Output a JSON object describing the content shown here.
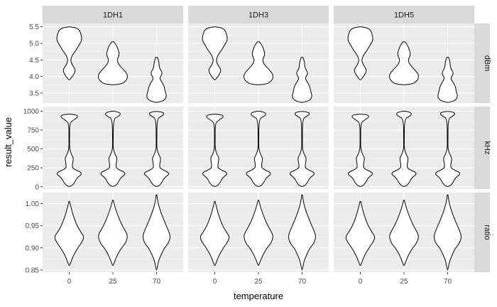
{
  "chart_data": {
    "type": "violin",
    "xlabel": "temperature",
    "ylabel": "result_value",
    "x_categories": [
      "0",
      "25",
      "70"
    ],
    "facet_columns": [
      "1DH1",
      "1DH3",
      "1DH5"
    ],
    "facet_rows": [
      {
        "name": "dBm",
        "ylim": [
          3.2,
          5.6
        ],
        "yticks": [
          3.5,
          4.0,
          4.5,
          5.0,
          5.5
        ],
        "ytick_labels": [
          "3.5",
          "4.0",
          "4.5",
          "5.0",
          "5.5"
        ],
        "violins": [
          [
            [
              5.5,
              0.05
            ],
            [
              5.45,
              0.58
            ],
            [
              5.3,
              0.75
            ],
            [
              5.1,
              0.82
            ],
            [
              4.95,
              0.62
            ],
            [
              4.8,
              0.45
            ],
            [
              4.65,
              0.2
            ],
            [
              4.5,
              0.08
            ],
            [
              4.35,
              0.18
            ],
            [
              4.2,
              0.42
            ],
            [
              4.05,
              0.28
            ],
            [
              3.9,
              0.04
            ]
          ],
          [
            [
              5.05,
              0.05
            ],
            [
              4.95,
              0.22
            ],
            [
              4.8,
              0.35
            ],
            [
              4.65,
              0.42
            ],
            [
              4.5,
              0.25
            ],
            [
              4.35,
              0.38
            ],
            [
              4.2,
              0.7
            ],
            [
              4.05,
              0.95
            ],
            [
              3.9,
              0.9
            ],
            [
              3.78,
              0.6
            ],
            [
              3.75,
              0.05
            ]
          ],
          [
            [
              4.58,
              0.05
            ],
            [
              4.45,
              0.15
            ],
            [
              4.25,
              0.18
            ],
            [
              4.1,
              0.4
            ],
            [
              3.95,
              0.18
            ],
            [
              3.85,
              0.32
            ],
            [
              3.7,
              0.5
            ],
            [
              3.55,
              0.55
            ],
            [
              3.4,
              0.65
            ],
            [
              3.28,
              0.5
            ],
            [
              3.22,
              0.05
            ]
          ]
        ]
      },
      {
        "name": "kHz",
        "ylim": [
          -30,
          1060
        ],
        "yticks": [
          0,
          250,
          500,
          750,
          1000
        ],
        "ytick_labels": [
          "0",
          "250",
          "500",
          "750",
          "1000"
        ],
        "violins": [
          [
            [
              960,
              0.05
            ],
            [
              950,
              0.5
            ],
            [
              920,
              0.55
            ],
            [
              880,
              0.25
            ],
            [
              840,
              0.02
            ],
            [
              600,
              0.02
            ],
            [
              500,
              0.02
            ],
            [
              420,
              0.15
            ],
            [
              380,
              0.28
            ],
            [
              300,
              0.2
            ],
            [
              240,
              0.2
            ],
            [
              180,
              0.9
            ],
            [
              120,
              0.5
            ],
            [
              60,
              0.35
            ],
            [
              20,
              0.2
            ],
            [
              5,
              0.05
            ]
          ],
          [
            [
              1000,
              0.05
            ],
            [
              985,
              0.4
            ],
            [
              960,
              0.5
            ],
            [
              930,
              0.35
            ],
            [
              900,
              0.03
            ],
            [
              600,
              0.02
            ],
            [
              500,
              0.02
            ],
            [
              420,
              0.15
            ],
            [
              380,
              0.28
            ],
            [
              300,
              0.2
            ],
            [
              240,
              0.2
            ],
            [
              180,
              0.9
            ],
            [
              120,
              0.5
            ],
            [
              60,
              0.35
            ],
            [
              20,
              0.2
            ],
            [
              5,
              0.05
            ]
          ],
          [
            [
              995,
              0.05
            ],
            [
              985,
              0.4
            ],
            [
              960,
              0.48
            ],
            [
              930,
              0.3
            ],
            [
              900,
              0.03
            ],
            [
              600,
              0.02
            ],
            [
              500,
              0.02
            ],
            [
              420,
              0.15
            ],
            [
              380,
              0.28
            ],
            [
              300,
              0.2
            ],
            [
              240,
              0.2
            ],
            [
              180,
              0.9
            ],
            [
              120,
              0.5
            ],
            [
              60,
              0.35
            ],
            [
              20,
              0.2
            ],
            [
              5,
              0.05
            ]
          ]
        ]
      },
      {
        "name": "ratio",
        "ylim": [
          0.845,
          1.025
        ],
        "yticks": [
          0.85,
          0.9,
          0.95,
          1.0
        ],
        "ytick_labels": [
          "0.85",
          "0.90",
          "0.95",
          "1.00"
        ],
        "violins": [
          [
            [
              1.005,
              0.02
            ],
            [
              0.99,
              0.12
            ],
            [
              0.97,
              0.28
            ],
            [
              0.95,
              0.5
            ],
            [
              0.935,
              0.75
            ],
            [
              0.925,
              0.95
            ],
            [
              0.915,
              0.85
            ],
            [
              0.9,
              0.55
            ],
            [
              0.885,
              0.3
            ],
            [
              0.87,
              0.12
            ],
            [
              0.86,
              0.02
            ]
          ],
          [
            [
              1.008,
              0.02
            ],
            [
              0.99,
              0.15
            ],
            [
              0.97,
              0.35
            ],
            [
              0.95,
              0.6
            ],
            [
              0.935,
              0.85
            ],
            [
              0.925,
              0.95
            ],
            [
              0.91,
              0.8
            ],
            [
              0.9,
              0.55
            ],
            [
              0.885,
              0.3
            ],
            [
              0.87,
              0.12
            ],
            [
              0.86,
              0.02
            ]
          ],
          [
            [
              1.02,
              0.02
            ],
            [
              1.0,
              0.1
            ],
            [
              0.98,
              0.28
            ],
            [
              0.96,
              0.5
            ],
            [
              0.94,
              0.75
            ],
            [
              0.925,
              0.9
            ],
            [
              0.91,
              0.75
            ],
            [
              0.9,
              0.5
            ],
            [
              0.885,
              0.3
            ],
            [
              0.87,
              0.12
            ],
            [
              0.85,
              0.02
            ]
          ]
        ]
      }
    ],
    "colors": {
      "panel_background": "#ebebeb",
      "grid_major": "#ffffff",
      "strip_background": "#d9d9d9",
      "violin_fill": "#ffffff",
      "violin_outline": "#000000"
    }
  }
}
